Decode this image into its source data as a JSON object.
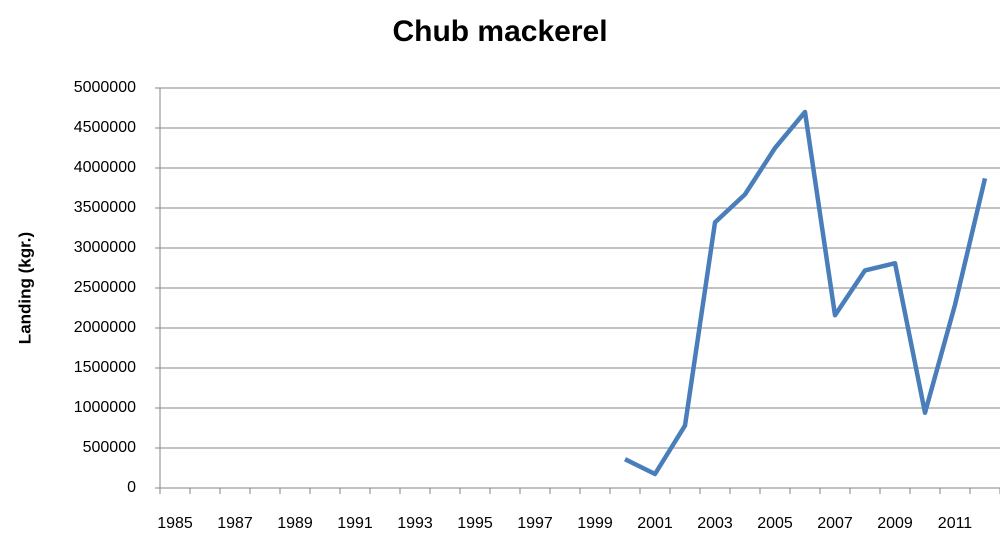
{
  "chart_data": {
    "type": "line",
    "title": "Chub mackerel",
    "y_label": "Landing (kgr.)",
    "categories": [
      "1985",
      null,
      "1987",
      null,
      "1989",
      null,
      "1991",
      null,
      "1993",
      null,
      "1995",
      null,
      "1997",
      null,
      "1999",
      null,
      "2001",
      null,
      "2003",
      null,
      "2005",
      null,
      "2007",
      null,
      "2009",
      null,
      "2011",
      null
    ],
    "series": [
      {
        "name": "Chub mackerel",
        "color": "#4a7ebb",
        "values": [
          null,
          null,
          null,
          null,
          null,
          null,
          null,
          null,
          null,
          null,
          null,
          null,
          null,
          null,
          null,
          360000,
          175000,
          780000,
          3320000,
          3670000,
          4250000,
          4700000,
          2160000,
          2720000,
          2810000,
          940000,
          2290000,
          3870000
        ]
      }
    ],
    "ylim": [
      0,
      5000000
    ],
    "yticks": [
      0,
      500000,
      1000000,
      1500000,
      2000000,
      2500000,
      3000000,
      3500000,
      4000000,
      4500000,
      5000000
    ],
    "grid": true,
    "legend": false
  }
}
